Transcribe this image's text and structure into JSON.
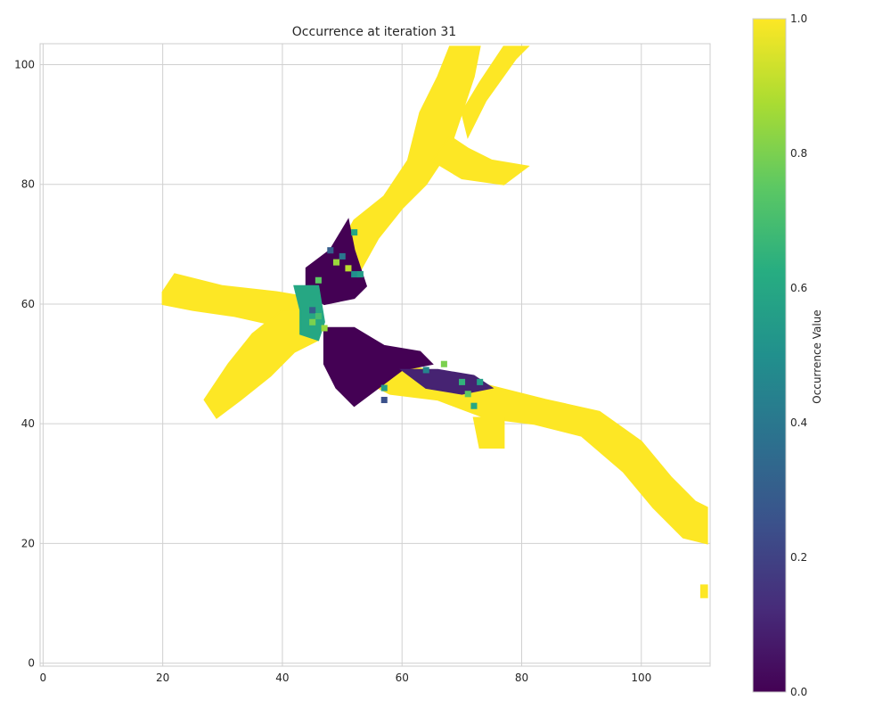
{
  "chart_data": {
    "type": "heatmap",
    "title": "Occurrence at iteration 31",
    "xlabel": "",
    "ylabel": "",
    "xlim": [
      -0.5,
      111.5
    ],
    "ylim": [
      -0.5,
      103.5
    ],
    "x_ticks": [
      0,
      20,
      40,
      60,
      80,
      100
    ],
    "y_ticks": [
      0,
      20,
      40,
      60,
      80,
      100
    ],
    "grid": true,
    "colormap": "viridis",
    "colorbar": {
      "label": "Occurrence Value",
      "range": [
        0.0,
        1.0
      ],
      "ticks": [
        "0.0",
        "0.2",
        "0.4",
        "0.6",
        "0.8",
        "1.0"
      ]
    },
    "colors": {
      "high": "#fde725",
      "mid": "#21918c",
      "low": "#440154"
    },
    "regions": [
      {
        "name": "upper band",
        "value": 1.0,
        "polygon": [
          [
            47,
            65
          ],
          [
            52,
            74
          ],
          [
            57,
            78
          ],
          [
            61,
            84
          ],
          [
            63,
            92
          ],
          [
            66,
            98
          ],
          [
            68,
            103
          ],
          [
            73,
            103
          ],
          [
            72,
            98
          ],
          [
            70,
            92
          ],
          [
            68,
            86
          ],
          [
            64,
            80
          ],
          [
            60,
            76
          ],
          [
            56,
            71
          ],
          [
            51,
            62
          ]
        ]
      },
      {
        "name": "upper band spur",
        "value": 1.0,
        "polygon": [
          [
            65,
            84
          ],
          [
            70,
            81
          ],
          [
            77,
            80
          ],
          [
            81,
            83
          ],
          [
            75,
            84
          ],
          [
            71,
            86
          ],
          [
            68,
            88
          ]
        ]
      },
      {
        "name": "upper band branch",
        "value": 1.0,
        "polygon": [
          [
            71,
            88
          ],
          [
            74,
            94
          ],
          [
            79,
            101
          ],
          [
            81,
            103
          ],
          [
            77,
            103
          ],
          [
            73,
            97
          ],
          [
            70,
            92
          ]
        ]
      },
      {
        "name": "left arm",
        "value": 1.0,
        "polygon": [
          [
            20,
            62
          ],
          [
            22,
            65
          ],
          [
            30,
            63
          ],
          [
            39,
            62
          ],
          [
            45,
            61
          ],
          [
            46,
            58
          ],
          [
            41,
            56
          ],
          [
            32,
            58
          ],
          [
            25,
            59
          ],
          [
            20,
            60
          ]
        ]
      },
      {
        "name": "left lower arm",
        "value": 1.0,
        "polygon": [
          [
            27,
            44
          ],
          [
            29,
            41
          ],
          [
            33,
            44
          ],
          [
            38,
            48
          ],
          [
            42,
            52
          ],
          [
            46,
            54
          ],
          [
            44,
            59
          ],
          [
            40,
            59
          ],
          [
            35,
            55
          ],
          [
            31,
            50
          ]
        ]
      },
      {
        "name": "right band",
        "value": 1.0,
        "polygon": [
          [
            53,
            53
          ],
          [
            60,
            50
          ],
          [
            68,
            48
          ],
          [
            76,
            46
          ],
          [
            84,
            44
          ],
          [
            93,
            42
          ],
          [
            100,
            37
          ],
          [
            105,
            31
          ],
          [
            109,
            27
          ],
          [
            111,
            26
          ],
          [
            111,
            20
          ],
          [
            107,
            21
          ],
          [
            102,
            26
          ],
          [
            97,
            32
          ],
          [
            90,
            38
          ],
          [
            82,
            40
          ],
          [
            74,
            41
          ],
          [
            66,
            44
          ],
          [
            58,
            45
          ],
          [
            52,
            48
          ]
        ]
      },
      {
        "name": "right band lobe",
        "value": 1.0,
        "polygon": [
          [
            72,
            41
          ],
          [
            77,
            41
          ],
          [
            77,
            36
          ],
          [
            73,
            36
          ]
        ]
      },
      {
        "name": "far right tail",
        "value": 1.0,
        "polygon": [
          [
            110,
            11
          ],
          [
            111,
            11
          ],
          [
            111,
            13
          ],
          [
            110,
            13
          ]
        ]
      },
      {
        "name": "upper dark core",
        "value": 0.0,
        "polygon": [
          [
            44,
            66
          ],
          [
            48,
            69
          ],
          [
            51,
            74
          ],
          [
            52,
            69
          ],
          [
            54,
            63
          ],
          [
            52,
            61
          ],
          [
            47,
            60
          ],
          [
            44,
            62
          ]
        ]
      },
      {
        "name": "center mixed strip",
        "value": 0.6,
        "polygon": [
          [
            42,
            63
          ],
          [
            46,
            63
          ],
          [
            47,
            57
          ],
          [
            46,
            54
          ],
          [
            43,
            55
          ],
          [
            43,
            59
          ]
        ]
      },
      {
        "name": "lower dark core",
        "value": 0.0,
        "polygon": [
          [
            47,
            56
          ],
          [
            52,
            56
          ],
          [
            57,
            53
          ],
          [
            63,
            52
          ],
          [
            65,
            50
          ],
          [
            60,
            49
          ],
          [
            56,
            46
          ],
          [
            52,
            43
          ],
          [
            49,
            46
          ],
          [
            47,
            50
          ]
        ]
      },
      {
        "name": "right dark streak",
        "value": 0.1,
        "polygon": [
          [
            60,
            49
          ],
          [
            66,
            49
          ],
          [
            72,
            48
          ],
          [
            75,
            46
          ],
          [
            70,
            45
          ],
          [
            64,
            46
          ]
        ]
      }
    ],
    "cells": [
      {
        "x": 52,
        "y": 72,
        "value": 0.6
      },
      {
        "x": 48,
        "y": 69,
        "value": 0.3
      },
      {
        "x": 50,
        "y": 68,
        "value": 0.4
      },
      {
        "x": 49,
        "y": 67,
        "value": 0.85
      },
      {
        "x": 51,
        "y": 66,
        "value": 0.9
      },
      {
        "x": 52,
        "y": 65,
        "value": 0.5
      },
      {
        "x": 53,
        "y": 65,
        "value": 0.55
      },
      {
        "x": 46,
        "y": 64,
        "value": 0.75
      },
      {
        "x": 45,
        "y": 61,
        "value": 0.6
      },
      {
        "x": 45,
        "y": 59,
        "value": 0.3
      },
      {
        "x": 46,
        "y": 58,
        "value": 0.7
      },
      {
        "x": 45,
        "y": 57,
        "value": 0.8
      },
      {
        "x": 47,
        "y": 56,
        "value": 0.85
      },
      {
        "x": 57,
        "y": 46,
        "value": 0.55
      },
      {
        "x": 57,
        "y": 44,
        "value": 0.25
      },
      {
        "x": 64,
        "y": 49,
        "value": 0.45
      },
      {
        "x": 67,
        "y": 50,
        "value": 0.8
      },
      {
        "x": 70,
        "y": 47,
        "value": 0.65
      },
      {
        "x": 73,
        "y": 47,
        "value": 0.55
      },
      {
        "x": 71,
        "y": 45,
        "value": 0.75
      },
      {
        "x": 72,
        "y": 43,
        "value": 0.6
      }
    ]
  }
}
